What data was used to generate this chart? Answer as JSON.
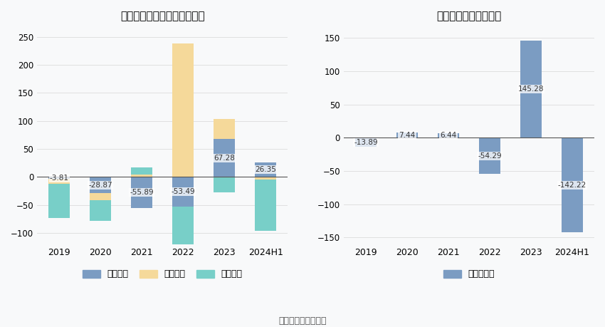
{
  "left_title": "广汽集团现金流净额（亿元）",
  "right_title": "自由现金流量（亿元）",
  "categories": [
    "2019",
    "2020",
    "2021",
    "2022",
    "2023",
    "2024H1"
  ],
  "operating": [
    -3.81,
    -28.87,
    -55.89,
    -53.49,
    67.28,
    26.35
  ],
  "financing": [
    -8.0,
    -12.0,
    4.0,
    238.0,
    36.0,
    -4.5
  ],
  "investing": [
    -62.0,
    -38.0,
    13.0,
    -93.0,
    -28.0,
    -92.0
  ],
  "free_cash": [
    -13.89,
    7.44,
    6.44,
    -54.29,
    145.28,
    -142.22
  ],
  "color_operating": "#7b9cc2",
  "color_financing": "#f5d99a",
  "color_investing": "#78cfc8",
  "color_free": "#7b9cc2",
  "source_text": "数据来源：恒生聚源",
  "legend_operating": "经营活动",
  "legend_financing": "筹资活动",
  "legend_investing": "投资活动",
  "legend_free": "自由现金流",
  "left_ylim": [
    -120,
    260
  ],
  "right_ylim": [
    -160,
    160
  ],
  "left_yticks": [
    -100,
    -50,
    0,
    50,
    100,
    150,
    200,
    250
  ],
  "right_yticks": [
    -150,
    -100,
    -50,
    0,
    50,
    100,
    150
  ],
  "background_color": "#f8f9fa"
}
